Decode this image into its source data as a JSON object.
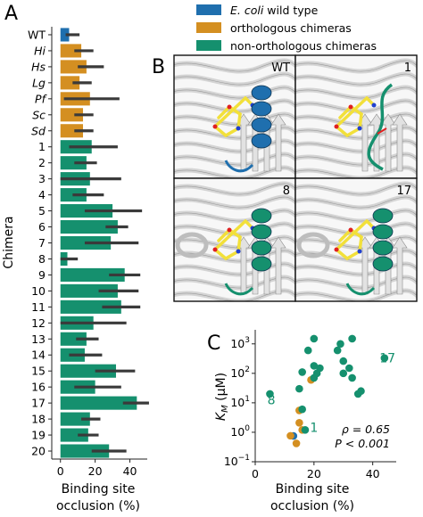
{
  "panels": {
    "a": "A",
    "b": "B",
    "c": "C"
  },
  "legend": [
    {
      "prefix": "E. coli",
      "suffix": " wild type",
      "color": "#1f6fae"
    },
    {
      "prefix": "",
      "suffix": "orthologous chimeras",
      "color": "#d48f21"
    },
    {
      "prefix": "",
      "suffix": "non-orthologous chimeras",
      "color": "#15906e"
    }
  ],
  "structures": [
    {
      "label": "WT",
      "helix_color": "#1f6fae",
      "helix": true
    },
    {
      "label": "1",
      "helix_color": "#15906e",
      "helix": false
    },
    {
      "label": "8",
      "helix_color": "#15906e",
      "helix": true
    },
    {
      "label": "17",
      "helix_color": "#15906e",
      "helix": true
    }
  ],
  "chart_data": [
    {
      "type": "bar",
      "orientation": "horizontal",
      "ylabel": "Chimera",
      "xlabel_line1": "Binding site",
      "xlabel_line2": "occlusion (%)",
      "xlim": [
        -5,
        50
      ],
      "xticks": [
        0,
        20,
        40
      ],
      "categories": [
        {
          "label": "WT",
          "italic": false,
          "group": "wt",
          "value": 5,
          "err_lo": 3,
          "err_hi": 11
        },
        {
          "label": "Hi",
          "italic": true,
          "group": "ortho",
          "value": 12,
          "err_lo": 8,
          "err_hi": 19
        },
        {
          "label": "Hs",
          "italic": true,
          "group": "ortho",
          "value": 15,
          "err_lo": 10,
          "err_hi": 25
        },
        {
          "label": "Lg",
          "italic": true,
          "group": "ortho",
          "value": 11,
          "err_lo": 7,
          "err_hi": 18
        },
        {
          "label": "Pf",
          "italic": true,
          "group": "ortho",
          "value": 17,
          "err_lo": 2,
          "err_hi": 34
        },
        {
          "label": "Sc",
          "italic": true,
          "group": "ortho",
          "value": 13,
          "err_lo": 8,
          "err_hi": 19
        },
        {
          "label": "Sd",
          "italic": true,
          "group": "ortho",
          "value": 13,
          "err_lo": 8,
          "err_hi": 19
        },
        {
          "label": "1",
          "italic": false,
          "group": "non",
          "value": 18,
          "err_lo": 5,
          "err_hi": 33
        },
        {
          "label": "2",
          "italic": false,
          "group": "non",
          "value": 15,
          "err_lo": 8,
          "err_hi": 21
        },
        {
          "label": "3",
          "italic": false,
          "group": "non",
          "value": 17,
          "err_lo": 0,
          "err_hi": 35
        },
        {
          "label": "4",
          "italic": false,
          "group": "non",
          "value": 15,
          "err_lo": 7,
          "err_hi": 25
        },
        {
          "label": "5",
          "italic": false,
          "group": "non",
          "value": 30,
          "err_lo": 14,
          "err_hi": 47
        },
        {
          "label": "6",
          "italic": false,
          "group": "non",
          "value": 33,
          "err_lo": 26,
          "err_hi": 39
        },
        {
          "label": "7",
          "italic": false,
          "group": "non",
          "value": 29,
          "err_lo": 14,
          "err_hi": 45
        },
        {
          "label": "8",
          "italic": false,
          "group": "non",
          "value": 4,
          "err_lo": 0,
          "err_hi": 10
        },
        {
          "label": "9",
          "italic": false,
          "group": "non",
          "value": 37,
          "err_lo": 28,
          "err_hi": 46
        },
        {
          "label": "10",
          "italic": false,
          "group": "non",
          "value": 33,
          "err_lo": 22,
          "err_hi": 45
        },
        {
          "label": "11",
          "italic": false,
          "group": "non",
          "value": 35,
          "err_lo": 24,
          "err_hi": 46
        },
        {
          "label": "12",
          "italic": false,
          "group": "non",
          "value": 19,
          "err_lo": 0,
          "err_hi": 38
        },
        {
          "label": "13",
          "italic": false,
          "group": "non",
          "value": 15,
          "err_lo": 9,
          "err_hi": 22
        },
        {
          "label": "14",
          "italic": false,
          "group": "non",
          "value": 14,
          "err_lo": 5,
          "err_hi": 24
        },
        {
          "label": "15",
          "italic": false,
          "group": "non",
          "value": 32,
          "err_lo": 20,
          "err_hi": 43
        },
        {
          "label": "16",
          "italic": false,
          "group": "non",
          "value": 20,
          "err_lo": 8,
          "err_hi": 35
        },
        {
          "label": "17",
          "italic": false,
          "group": "non",
          "value": 44,
          "err_lo": 36,
          "err_hi": 51
        },
        {
          "label": "18",
          "italic": false,
          "group": "non",
          "value": 17,
          "err_lo": 12,
          "err_hi": 23
        },
        {
          "label": "19",
          "italic": false,
          "group": "non",
          "value": 16,
          "err_lo": 10,
          "err_hi": 22
        },
        {
          "label": "20",
          "italic": false,
          "group": "non",
          "value": 28,
          "err_lo": 18,
          "err_hi": 38
        }
      ]
    },
    {
      "type": "scatter",
      "xscale": "linear",
      "yscale": "log",
      "xlabel_line1": "Binding site",
      "xlabel_line2": "occlusion (%)",
      "ylabel_italic": "K",
      "ylabel_sub": "M",
      "ylabel_rest": " (μM)",
      "xlim": [
        0,
        48
      ],
      "ylim": [
        0.1,
        3000
      ],
      "xticks": [
        0,
        20,
        40
      ],
      "yticks": [
        {
          "value": 0.1,
          "base": "10",
          "exp": "−1"
        },
        {
          "value": 1,
          "base": "10",
          "exp": "0"
        },
        {
          "value": 10,
          "base": "10",
          "exp": "1"
        },
        {
          "value": 100,
          "base": "10",
          "exp": "2"
        },
        {
          "value": 1000,
          "base": "10",
          "exp": "3"
        }
      ],
      "annotations": [
        {
          "text": "8",
          "x": 5.5,
          "y": 12.7
        },
        {
          "text": "1",
          "x": 20,
          "y": 1.45
        },
        {
          "text": "17",
          "x": 45,
          "y": 335
        }
      ],
      "stats_line1": "ρ = 0.65",
      "stats_line2": "P < 0.001",
      "points": [
        {
          "group": "wt",
          "x": 13,
          "y": 0.75
        },
        {
          "group": "ortho",
          "x": 12,
          "y": 0.76
        },
        {
          "group": "ortho",
          "x": 14,
          "y": 0.42
        },
        {
          "group": "ortho",
          "x": 15,
          "y": 2.1
        },
        {
          "group": "ortho",
          "x": 15,
          "y": 5.5
        },
        {
          "group": "ortho",
          "x": 16,
          "y": 1.2
        },
        {
          "group": "ortho",
          "x": 19,
          "y": 60
        },
        {
          "group": "non",
          "x": 5,
          "y": 20
        },
        {
          "group": "non",
          "x": 15,
          "y": 30
        },
        {
          "group": "non",
          "x": 16,
          "y": 6
        },
        {
          "group": "non",
          "x": 16,
          "y": 110
        },
        {
          "group": "non",
          "x": 17,
          "y": 1.2
        },
        {
          "group": "non",
          "x": 18,
          "y": 600
        },
        {
          "group": "non",
          "x": 20,
          "y": 1500
        },
        {
          "group": "non",
          "x": 20,
          "y": 70
        },
        {
          "group": "non",
          "x": 20,
          "y": 180
        },
        {
          "group": "non",
          "x": 21,
          "y": 100
        },
        {
          "group": "non",
          "x": 22,
          "y": 150
        },
        {
          "group": "non",
          "x": 28,
          "y": 600
        },
        {
          "group": "non",
          "x": 29,
          "y": 1000
        },
        {
          "group": "non",
          "x": 30,
          "y": 260
        },
        {
          "group": "non",
          "x": 30,
          "y": 100
        },
        {
          "group": "non",
          "x": 32,
          "y": 150
        },
        {
          "group": "non",
          "x": 33,
          "y": 1500
        },
        {
          "group": "non",
          "x": 33,
          "y": 70
        },
        {
          "group": "non",
          "x": 35,
          "y": 20
        },
        {
          "group": "non",
          "x": 36,
          "y": 25
        },
        {
          "group": "non",
          "x": 44,
          "y": 330
        }
      ]
    }
  ],
  "colors": {
    "wt": "#1f6fae",
    "ortho": "#d48f21",
    "non": "#15906e",
    "error": "#3a3a3a"
  }
}
